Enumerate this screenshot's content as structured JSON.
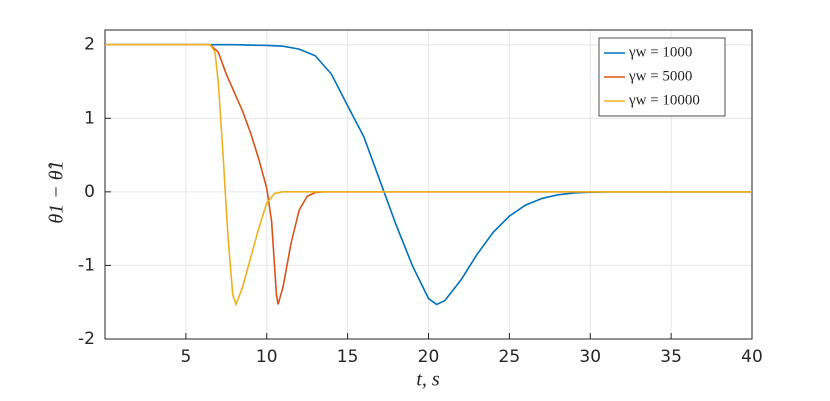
{
  "chart_data": {
    "type": "line",
    "xlabel": "t, s",
    "ylabel": "θ1 − θ̂1",
    "xlim": [
      0,
      40
    ],
    "ylim": [
      -2,
      2.2
    ],
    "xticks": [
      5,
      10,
      15,
      20,
      25,
      30,
      35,
      40
    ],
    "yticks": [
      -2,
      -1,
      0,
      1,
      2
    ],
    "grid": true,
    "legend": "top-right",
    "series": [
      {
        "name": "γw = 1000",
        "color": "#0072BD",
        "x": [
          0,
          6,
          8,
          10,
          11,
          12,
          13,
          14,
          15,
          16,
          17,
          18,
          19,
          20,
          20.5,
          21,
          22,
          23,
          24,
          25,
          26,
          27,
          28,
          29,
          30,
          31,
          40
        ],
        "values": [
          2,
          2,
          2,
          1.99,
          1.98,
          1.94,
          1.85,
          1.6,
          1.17,
          0.75,
          0.15,
          -0.45,
          -1.0,
          -1.45,
          -1.53,
          -1.48,
          -1.2,
          -0.85,
          -0.55,
          -0.33,
          -0.18,
          -0.09,
          -0.04,
          -0.015,
          -0.005,
          0,
          0
        ]
      },
      {
        "name": "γw = 5000",
        "color": "#D95319",
        "x": [
          0,
          6.5,
          7,
          7.5,
          8,
          8.5,
          9,
          9.5,
          10,
          10.3,
          10.6,
          10.7,
          11,
          11.5,
          12,
          12.5,
          13,
          13.5,
          40
        ],
        "values": [
          2,
          2,
          1.9,
          1.6,
          1.35,
          1.1,
          0.8,
          0.45,
          0.05,
          -0.4,
          -1.4,
          -1.53,
          -1.3,
          -0.7,
          -0.25,
          -0.06,
          -0.01,
          0,
          0
        ]
      },
      {
        "name": "γw = 10000",
        "color": "#EDB120",
        "x": [
          0,
          6.5,
          6.8,
          7,
          7.3,
          7.6,
          7.9,
          8.1,
          8.5,
          9,
          9.5,
          10,
          10.5,
          11,
          40
        ],
        "values": [
          2,
          2,
          1.9,
          1.5,
          0.5,
          -0.6,
          -1.4,
          -1.53,
          -1.3,
          -0.9,
          -0.5,
          -0.15,
          -0.02,
          0,
          0
        ]
      }
    ]
  }
}
